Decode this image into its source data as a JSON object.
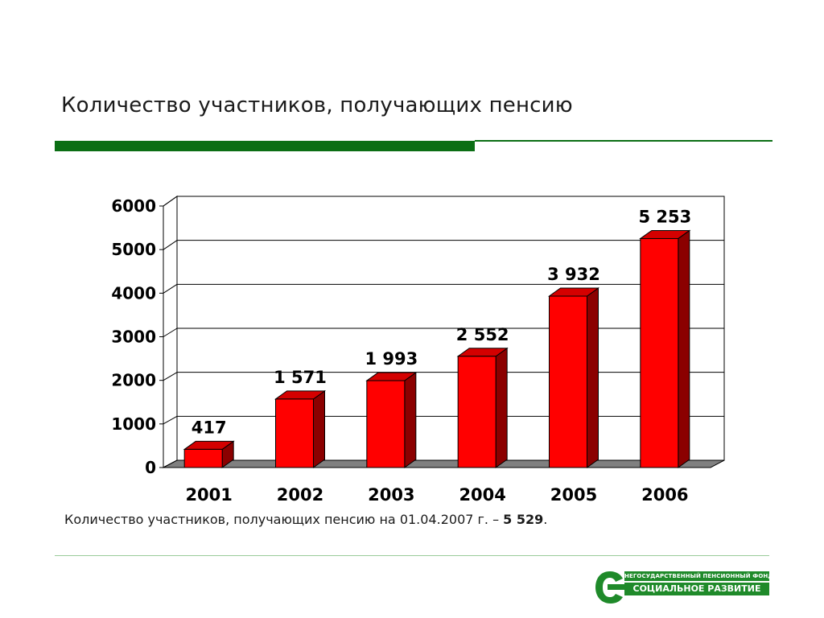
{
  "slide": {
    "title": "Количество участников, получающих пенсию"
  },
  "footnote": {
    "text": "Количество участников, получающих пенсию на 01.04.2007 г. – ",
    "value": "5 529",
    "end": "."
  },
  "logo": {
    "line1": "НЕГОСУДАРСТВЕННЫЙ ПЕНСИОННЫЙ ФОНД",
    "line2": "СОЦИАЛЬНОЕ РАЗВИТИЕ",
    "color": "#1f8a2a"
  },
  "colors": {
    "bar_front": "#ff0000",
    "bar_top": "#d40000",
    "bar_side": "#8b0000",
    "accent_green": "#0b6e14"
  },
  "chart_data": {
    "type": "bar",
    "categories": [
      "2001",
      "2002",
      "2003",
      "2004",
      "2005",
      "2006"
    ],
    "values": [
      417,
      1571,
      1993,
      2552,
      3932,
      5253
    ],
    "data_labels": [
      "417",
      "1 571",
      "1 993",
      "2 552",
      "3 932",
      "5 253"
    ],
    "y_ticks": [
      "0",
      "1000",
      "2000",
      "3000",
      "4000",
      "5000",
      "6000"
    ],
    "ylim": [
      0,
      6000
    ],
    "grid": true,
    "legend": false,
    "title": "",
    "xlabel": "",
    "ylabel": "",
    "style": "3d"
  }
}
